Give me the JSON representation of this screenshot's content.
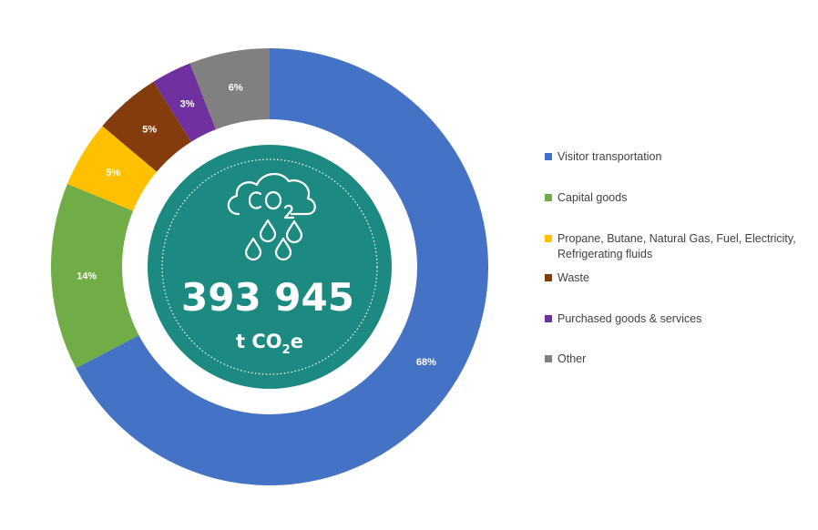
{
  "chart_data": {
    "type": "donut",
    "title": "",
    "series": [
      {
        "name": "Visitor transportation",
        "value": 68,
        "label": "68%",
        "color": "#4472C4"
      },
      {
        "name": "Capital goods",
        "value": 14,
        "label": "14%",
        "color": "#70AD47"
      },
      {
        "name": "Propane, Butane, Natural Gas, Fuel, Electricity, Refrigerating fluids",
        "value": 5,
        "label": "5%",
        "color": "#FFC000"
      },
      {
        "name": "Waste",
        "value": 5,
        "label": "5%",
        "color": "#843C0C"
      },
      {
        "name": "Purchased goods & services",
        "value": 3,
        "label": "3%",
        "color": "#7030A0"
      },
      {
        "name": "Other",
        "value": 6,
        "label": "6%",
        "color": "#808080"
      }
    ],
    "legend_position": "right"
  },
  "center": {
    "icon": "co2-cloud-icon",
    "value": "393 945",
    "unit_prefix": "t CO",
    "unit_subscript": "2",
    "unit_suffix": "e",
    "color": "#1C8A80"
  },
  "legend": {
    "items": [
      {
        "lines": [
          "Visitor transportation"
        ]
      },
      {
        "lines": [
          "Capital goods"
        ]
      },
      {
        "lines": [
          "Propane, Butane, Natural Gas, Fuel, Electricity,",
          "Refrigerating fluids"
        ]
      },
      {
        "lines": [
          "Waste"
        ]
      },
      {
        "lines": [
          "Purchased goods & services"
        ]
      },
      {
        "lines": [
          "Other"
        ]
      }
    ]
  }
}
